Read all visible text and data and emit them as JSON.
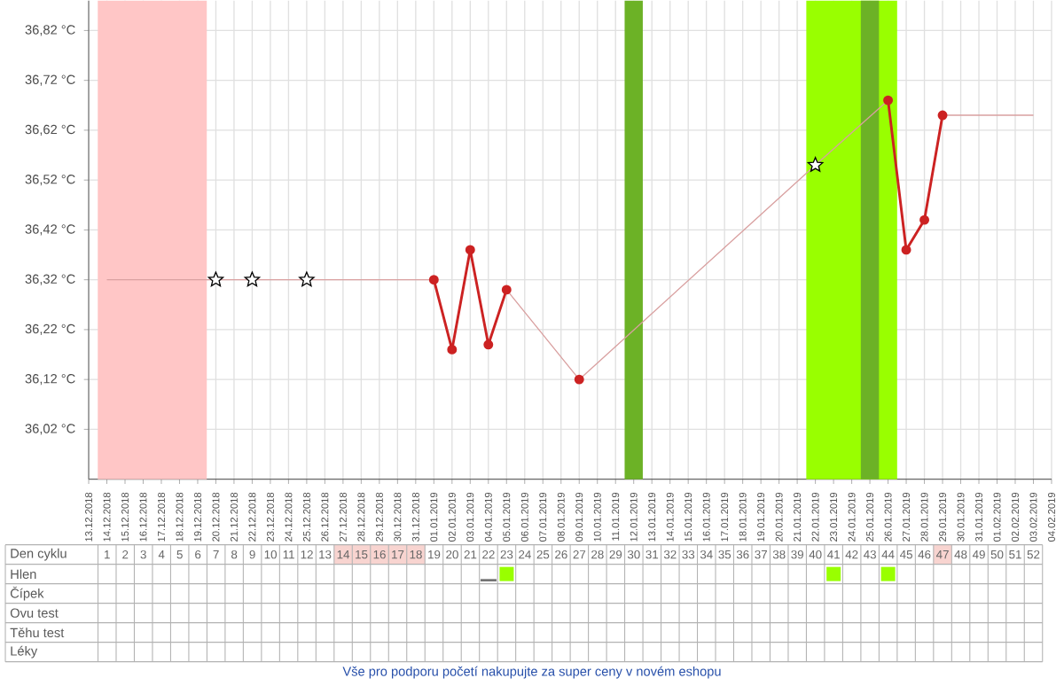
{
  "chart_data": {
    "type": "line",
    "categories": [
      "13.12.2018",
      "14.12.2018",
      "15.12.2018",
      "16.12.2018",
      "17.12.2018",
      "18.12.2018",
      "19.12.2018",
      "20.12.2018",
      "21.12.2018",
      "22.12.2018",
      "23.12.2018",
      "24.12.2018",
      "25.12.2018",
      "26.12.2018",
      "27.12.2018",
      "28.12.2018",
      "29.12.2018",
      "30.12.2018",
      "31.12.2018",
      "01.01.2019",
      "02.01.2019",
      "03.01.2019",
      "04.01.2019",
      "05.01.2019",
      "06.01.2019",
      "07.01.2019",
      "08.01.2019",
      "09.01.2019",
      "10.01.2019",
      "11.01.2019",
      "12.01.2019",
      "13.01.2019",
      "14.01.2019",
      "15.01.2019",
      "16.01.2019",
      "17.01.2019",
      "18.01.2019",
      "19.01.2019",
      "20.01.2019",
      "21.01.2019",
      "22.01.2019",
      "23.01.2019",
      "24.01.2019",
      "25.01.2019",
      "26.01.2019",
      "27.01.2019",
      "28.01.2019",
      "29.01.2019",
      "30.01.2019",
      "31.01.2019",
      "01.02.2019",
      "02.02.2019",
      "03.02.2019",
      "04.02.2019"
    ],
    "series": [
      {
        "color": "#d9a0a0",
        "marker": "none",
        "values": [
          null,
          36.32,
          null,
          null,
          null,
          null,
          null,
          36.32,
          null,
          36.32,
          null,
          null,
          36.32,
          null,
          null,
          null,
          null,
          null,
          null,
          36.32,
          36.18,
          36.38,
          36.19,
          36.3,
          null,
          null,
          null,
          36.12,
          null,
          null,
          null,
          null,
          null,
          null,
          null,
          null,
          null,
          null,
          null,
          null,
          36.55,
          null,
          null,
          null,
          36.68,
          36.38,
          36.44,
          36.65,
          null,
          null,
          null,
          null,
          36.65,
          null
        ]
      },
      {
        "color": "#cc2222",
        "marker": "circle",
        "values": [
          null,
          null,
          null,
          null,
          null,
          null,
          null,
          null,
          null,
          null,
          null,
          null,
          null,
          null,
          null,
          null,
          null,
          null,
          null,
          36.32,
          36.18,
          36.38,
          36.19,
          36.3,
          null,
          null,
          null,
          36.12,
          null,
          null,
          null,
          null,
          null,
          null,
          null,
          null,
          null,
          null,
          null,
          null,
          null,
          null,
          null,
          null,
          36.68,
          36.38,
          36.44,
          36.65,
          null,
          null,
          null,
          null,
          null,
          null
        ]
      },
      {
        "type": "scatter",
        "color": "#ffffff",
        "marker": "star",
        "values": [
          null,
          null,
          null,
          null,
          null,
          null,
          null,
          36.32,
          null,
          36.32,
          null,
          null,
          36.32,
          null,
          null,
          null,
          null,
          null,
          null,
          null,
          null,
          null,
          null,
          null,
          null,
          null,
          null,
          null,
          null,
          null,
          null,
          null,
          null,
          null,
          null,
          null,
          null,
          null,
          null,
          null,
          36.55,
          null,
          null,
          null,
          null,
          null,
          null,
          null,
          null,
          null,
          null,
          null,
          null,
          null
        ]
      }
    ],
    "ylim": [
      35.92,
      36.88
    ],
    "yticks": [
      {
        "value": 36.02,
        "label": "36,02 °C"
      },
      {
        "value": 36.12,
        "label": "36,12 °C"
      },
      {
        "value": 36.22,
        "label": "36,22 °C"
      },
      {
        "value": 36.32,
        "label": "36,32 °C"
      },
      {
        "value": 36.42,
        "label": "36,42 °C"
      },
      {
        "value": 36.52,
        "label": "36,52 °C"
      },
      {
        "value": 36.62,
        "label": "36,62 °C"
      },
      {
        "value": 36.72,
        "label": "36,72 °C"
      },
      {
        "value": 36.82,
        "label": "36,82 °C"
      }
    ],
    "x2label": "Den cyklu",
    "x2lim": [
      -4.6,
      53
    ],
    "x2ticks": [
      1,
      2,
      3,
      4,
      5,
      6,
      7,
      8,
      9,
      10,
      11,
      12,
      13,
      14,
      15,
      16,
      17,
      18,
      19,
      20,
      21,
      22,
      23,
      24,
      25,
      26,
      27,
      28,
      29,
      30,
      31,
      32,
      33,
      34,
      35,
      36,
      37,
      38,
      39,
      40,
      41,
      42,
      43,
      44,
      45,
      46,
      47,
      48,
      49,
      50,
      51,
      52
    ],
    "bands": [
      {
        "axis": "x",
        "from": "14.12.2018",
        "to": "19.12.2018",
        "color": "#ffc6c6"
      },
      {
        "axis": "x",
        "from": "12.01.2019",
        "to": "12.01.2019",
        "color": "#6cb226"
      },
      {
        "axis": "x",
        "from": "22.01.2019",
        "to": "26.01.2019",
        "color": "#99ff00"
      },
      {
        "axis": "x",
        "from": "25.01.2019",
        "to": "25.01.2019",
        "color": "#6cb226"
      }
    ],
    "grid": true,
    "annotations": [
      "Hlen",
      "Čípek",
      "Ovu test",
      "Těhu test",
      "Léky",
      "Vše pro podporu početí nakupujte za super ceny v novém eshopu"
    ]
  }
}
